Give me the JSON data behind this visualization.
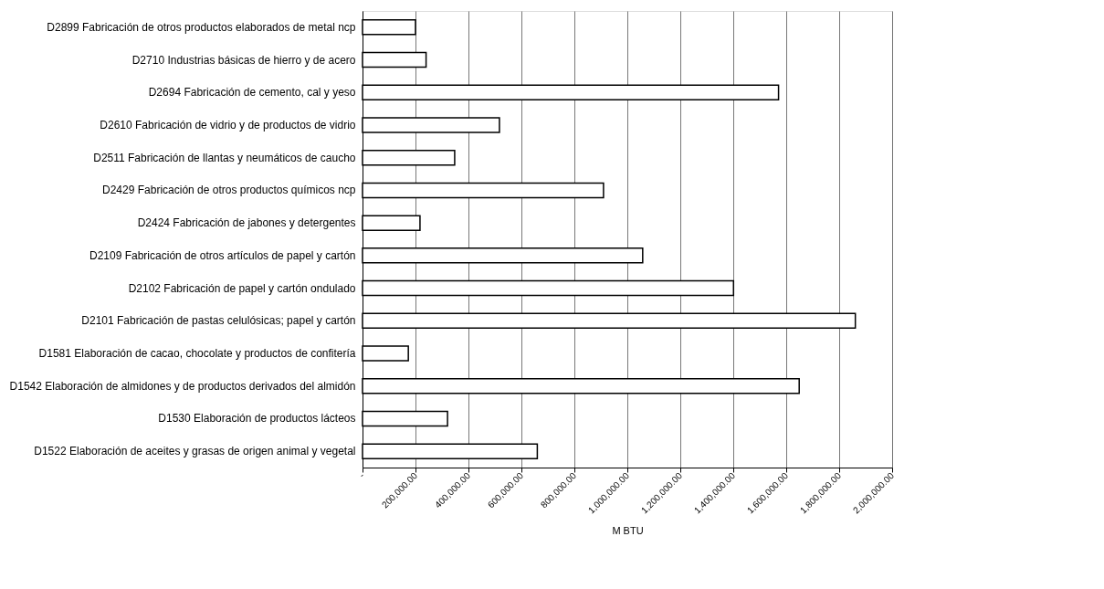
{
  "chart_data": {
    "type": "bar",
    "orientation": "horizontal",
    "xlabel": "M BTU",
    "categories": [
      "D2899 Fabricación de otros productos elaborados de metal ncp",
      "D2710 Industrias básicas de hierro y de acero",
      "D2694 Fabricación de cemento, cal y yeso",
      "D2610 Fabricación de vidrio y de productos de vidrio",
      "D2511 Fabricación de llantas y neumáticos de caucho",
      "D2429 Fabricación de otros productos químicos ncp",
      "D2424 Fabricación de jabones y detergentes",
      "D2109 Fabricación de otros artículos de papel y cartón",
      "D2102 Fabricación de papel y cartón ondulado",
      "D2101 Fabricación de pastas celulósicas; papel y cartón",
      "D1581 Elaboración de cacao, chocolate y productos de confitería",
      "D1542 Elaboración de almidones y de productos derivados del almidón",
      "D1530 Elaboración de productos lácteos",
      "D1522 Elaboración de aceites y grasas de origen animal y vegetal"
    ],
    "values": [
      200000,
      240000,
      1571000,
      517000,
      348000,
      910000,
      217000,
      1058000,
      1401000,
      1861000,
      173000,
      1649000,
      321000,
      660000
    ],
    "color": "#ffffff",
    "xlim": [
      0,
      2000000
    ],
    "xticks": [
      {
        "value": 0,
        "label": "-"
      },
      {
        "value": 200000,
        "label": "200,000.00"
      },
      {
        "value": 400000,
        "label": "400,000.00"
      },
      {
        "value": 600000,
        "label": "600,000.00"
      },
      {
        "value": 800000,
        "label": "800,000.00"
      },
      {
        "value": 1000000,
        "label": "1,000,000.00"
      },
      {
        "value": 1200000,
        "label": "1,200,000.00"
      },
      {
        "value": 1400000,
        "label": "1,400,000.00"
      },
      {
        "value": 1600000,
        "label": "1,600,000.00"
      },
      {
        "value": 1800000,
        "label": "1,800,000.00"
      },
      {
        "value": 2000000,
        "label": "2,000,000.00"
      }
    ],
    "grid": "x"
  }
}
